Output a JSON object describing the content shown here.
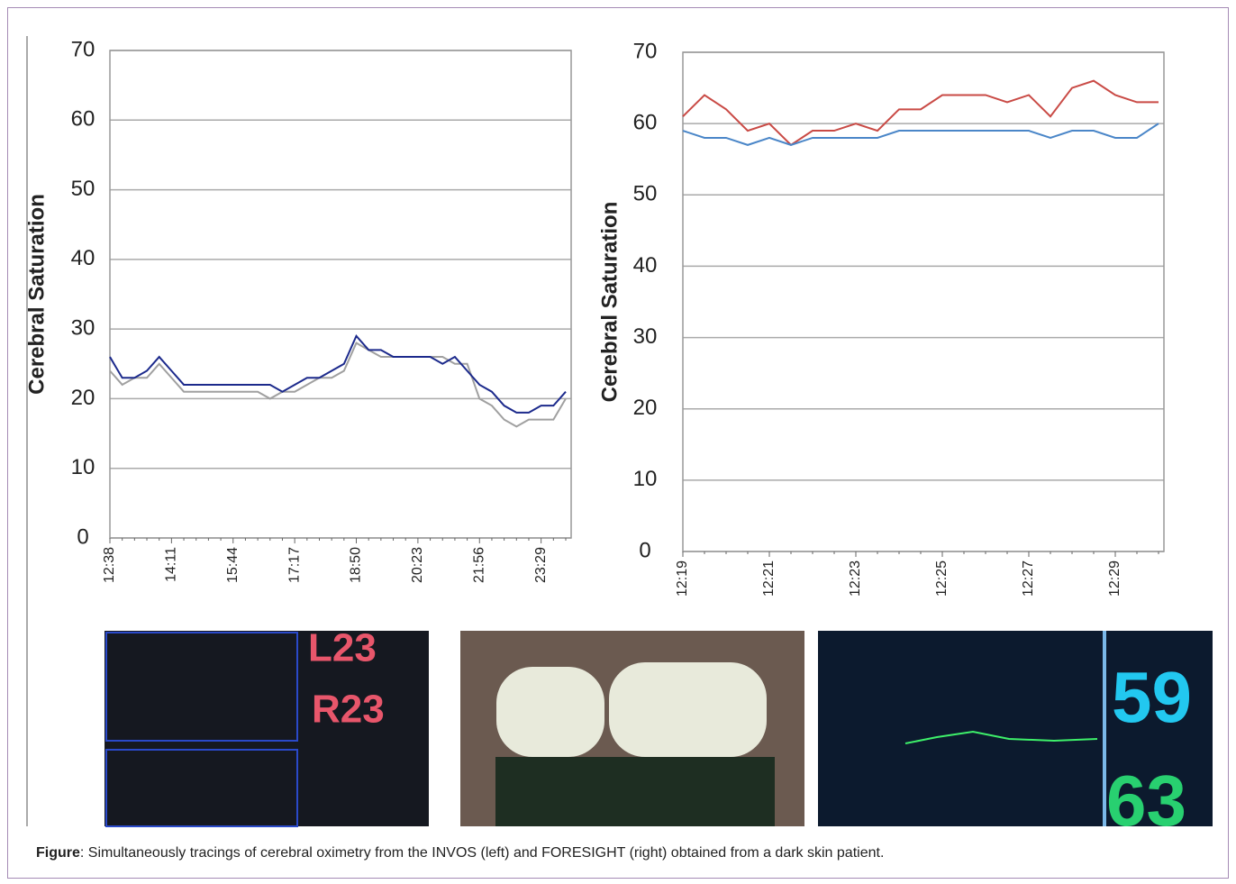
{
  "chart_data": [
    {
      "type": "line",
      "ylabel": "Cerebral Saturation",
      "categories": [
        "12:38",
        null,
        null,
        null,
        null,
        "14:11",
        null,
        null,
        null,
        null,
        "15:44",
        null,
        null,
        null,
        null,
        "17:17",
        null,
        null,
        null,
        null,
        "18:50",
        null,
        null,
        null,
        null,
        "20:23",
        null,
        null,
        null,
        null,
        "21:56",
        null,
        null,
        null,
        null,
        "23:29",
        null,
        null
      ],
      "series": [
        {
          "color": "#a0a0a0",
          "values": [
            24,
            22,
            23,
            23,
            25,
            23,
            21,
            21,
            21,
            21,
            21,
            21,
            21,
            20,
            21,
            21,
            22,
            23,
            23,
            24,
            28,
            27,
            26,
            26,
            26,
            26,
            26,
            26,
            25,
            25,
            20,
            19,
            17,
            16,
            17,
            17,
            17,
            20
          ]
        },
        {
          "color": "#1c2a8c",
          "values": [
            26,
            23,
            23,
            24,
            26,
            24,
            22,
            22,
            22,
            22,
            22,
            22,
            22,
            22,
            21,
            22,
            23,
            23,
            24,
            25,
            29,
            27,
            27,
            26,
            26,
            26,
            26,
            25,
            26,
            24,
            22,
            21,
            19,
            18,
            18,
            19,
            19,
            21
          ]
        }
      ],
      "ylim": [
        0,
        70
      ],
      "yticks": [
        0,
        10,
        20,
        30,
        40,
        50,
        60,
        70
      ],
      "grid": true
    },
    {
      "type": "line",
      "ylabel": "Cerebral Saturation",
      "categories": [
        "12:19",
        null,
        null,
        null,
        "12:21",
        null,
        null,
        null,
        "12:23",
        null,
        null,
        null,
        "12:25",
        null,
        null,
        null,
        "12:27",
        null,
        null,
        null,
        "12:29",
        null,
        null
      ],
      "series": [
        {
          "color": "#c94a45",
          "values": [
            61,
            64,
            62,
            59,
            60,
            57,
            59,
            59,
            60,
            59,
            62,
            62,
            64,
            64,
            64,
            63,
            64,
            61,
            65,
            66,
            64,
            63,
            63
          ]
        },
        {
          "color": "#4a86c8",
          "values": [
            59,
            58,
            58,
            57,
            58,
            57,
            58,
            58,
            58,
            58,
            59,
            59,
            59,
            59,
            59,
            59,
            59,
            58,
            59,
            59,
            58,
            58,
            60
          ]
        }
      ],
      "ylim": [
        0,
        70
      ],
      "yticks": [
        0,
        10,
        20,
        30,
        40,
        50,
        60,
        70
      ],
      "grid": true
    }
  ],
  "photos": {
    "left": [
      "L23",
      "R23"
    ],
    "right": [
      "59",
      "63"
    ]
  },
  "caption": {
    "label": "Figure",
    "text": ": Simultaneously tracings of cerebral oximetry from the INVOS (left) and FORESIGHT (right) obtained from a dark skin patient."
  }
}
